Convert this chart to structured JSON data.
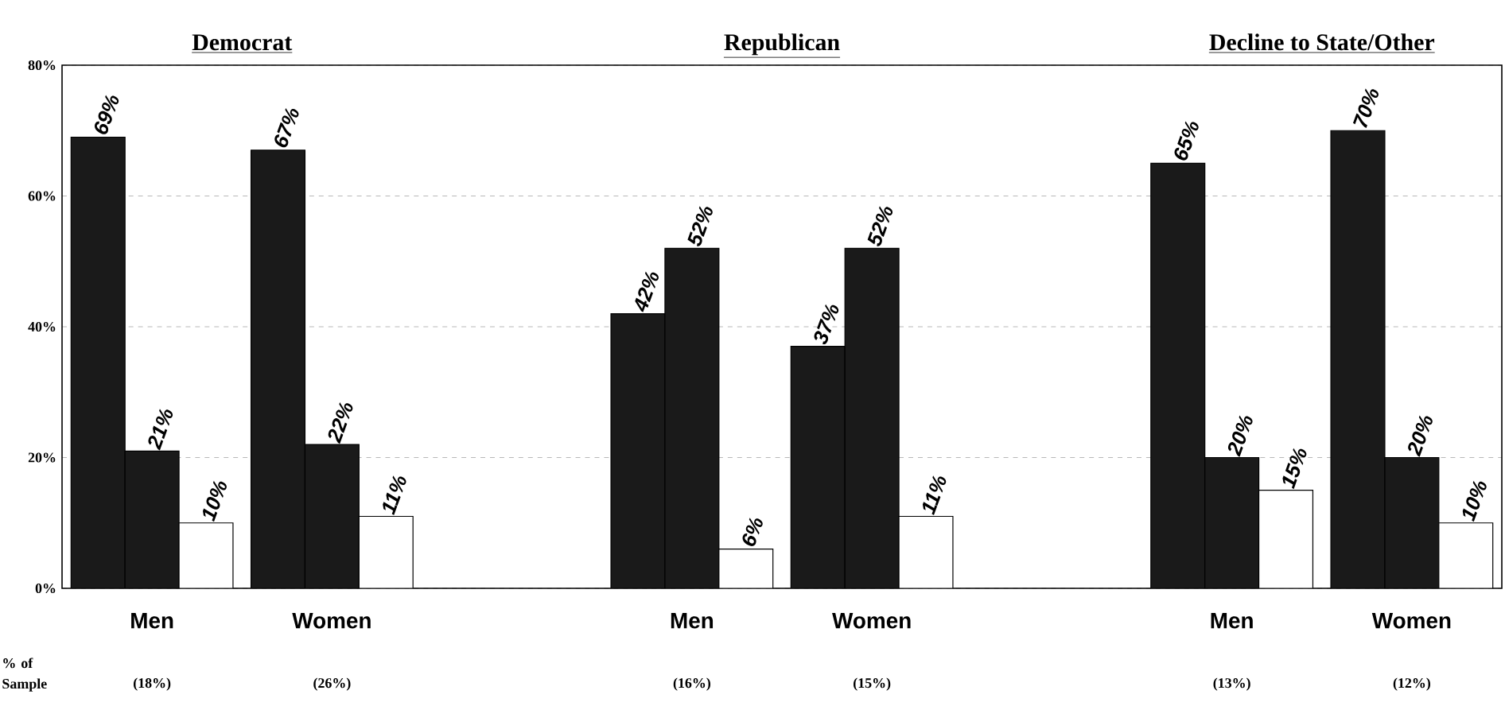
{
  "chart_data": {
    "type": "bar",
    "categories": [
      "Men",
      "Women",
      null,
      "Men",
      "Women",
      null,
      "Men",
      "Women"
    ],
    "series": [
      {
        "color": "#1a1a1a",
        "values": [
          69,
          67,
          null,
          42,
          37,
          null,
          65,
          70
        ],
        "value_labels": [
          "69%",
          "67%",
          null,
          "42%",
          "37%",
          null,
          "65%",
          "70%"
        ]
      },
      {
        "color": "#1a1a1a",
        "values": [
          21,
          22,
          null,
          52,
          52,
          null,
          20,
          20
        ],
        "value_labels": [
          "21%",
          "22%",
          null,
          "52%",
          "52%",
          null,
          "20%",
          "20%"
        ]
      },
      {
        "color": "#ffffff",
        "values": [
          10,
          11,
          null,
          6,
          11,
          null,
          15,
          10
        ],
        "value_labels": [
          "10%",
          "11%",
          null,
          "6%",
          "11%",
          null,
          "15%",
          "10%"
        ]
      }
    ],
    "ylim": [
      0,
      80
    ],
    "yticks": [
      {
        "value": 0,
        "label": "0%"
      },
      {
        "value": 20,
        "label": "20%"
      },
      {
        "value": 40,
        "label": "40%"
      },
      {
        "value": 60,
        "label": "60%"
      },
      {
        "value": 80,
        "label": "80%"
      }
    ],
    "grid": "y",
    "annotations": [
      "Democrat",
      "Republican",
      "Decline to State/Other",
      "% of Sample",
      "(18%)",
      "(26%)",
      "(16%)",
      "(15%)",
      "(13%)",
      "(12%)"
    ]
  }
}
